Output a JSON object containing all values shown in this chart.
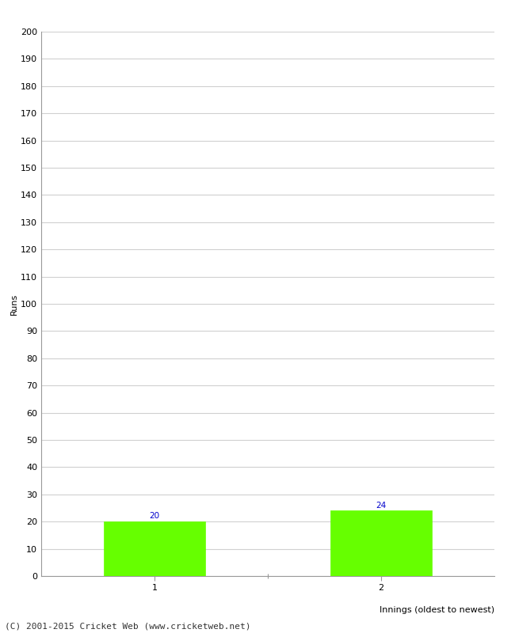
{
  "categories": [
    "1",
    "2"
  ],
  "values": [
    20,
    24
  ],
  "bar_color": "#66ff00",
  "bar_edge_color": "#66ff00",
  "ylabel": "Runs",
  "xlabel": "Innings (oldest to newest)",
  "ylim": [
    0,
    200
  ],
  "ytick_step": 10,
  "annotation_color": "#0000cc",
  "annotation_fontsize": 7.5,
  "footer": "(C) 2001-2015 Cricket Web (www.cricketweb.net)",
  "footer_fontsize": 8,
  "background_color": "#ffffff",
  "grid_color": "#d0d0d0",
  "tick_label_fontsize": 8,
  "axis_label_fontsize": 8,
  "x_positions": [
    1,
    3
  ],
  "xlim": [
    0,
    4
  ]
}
